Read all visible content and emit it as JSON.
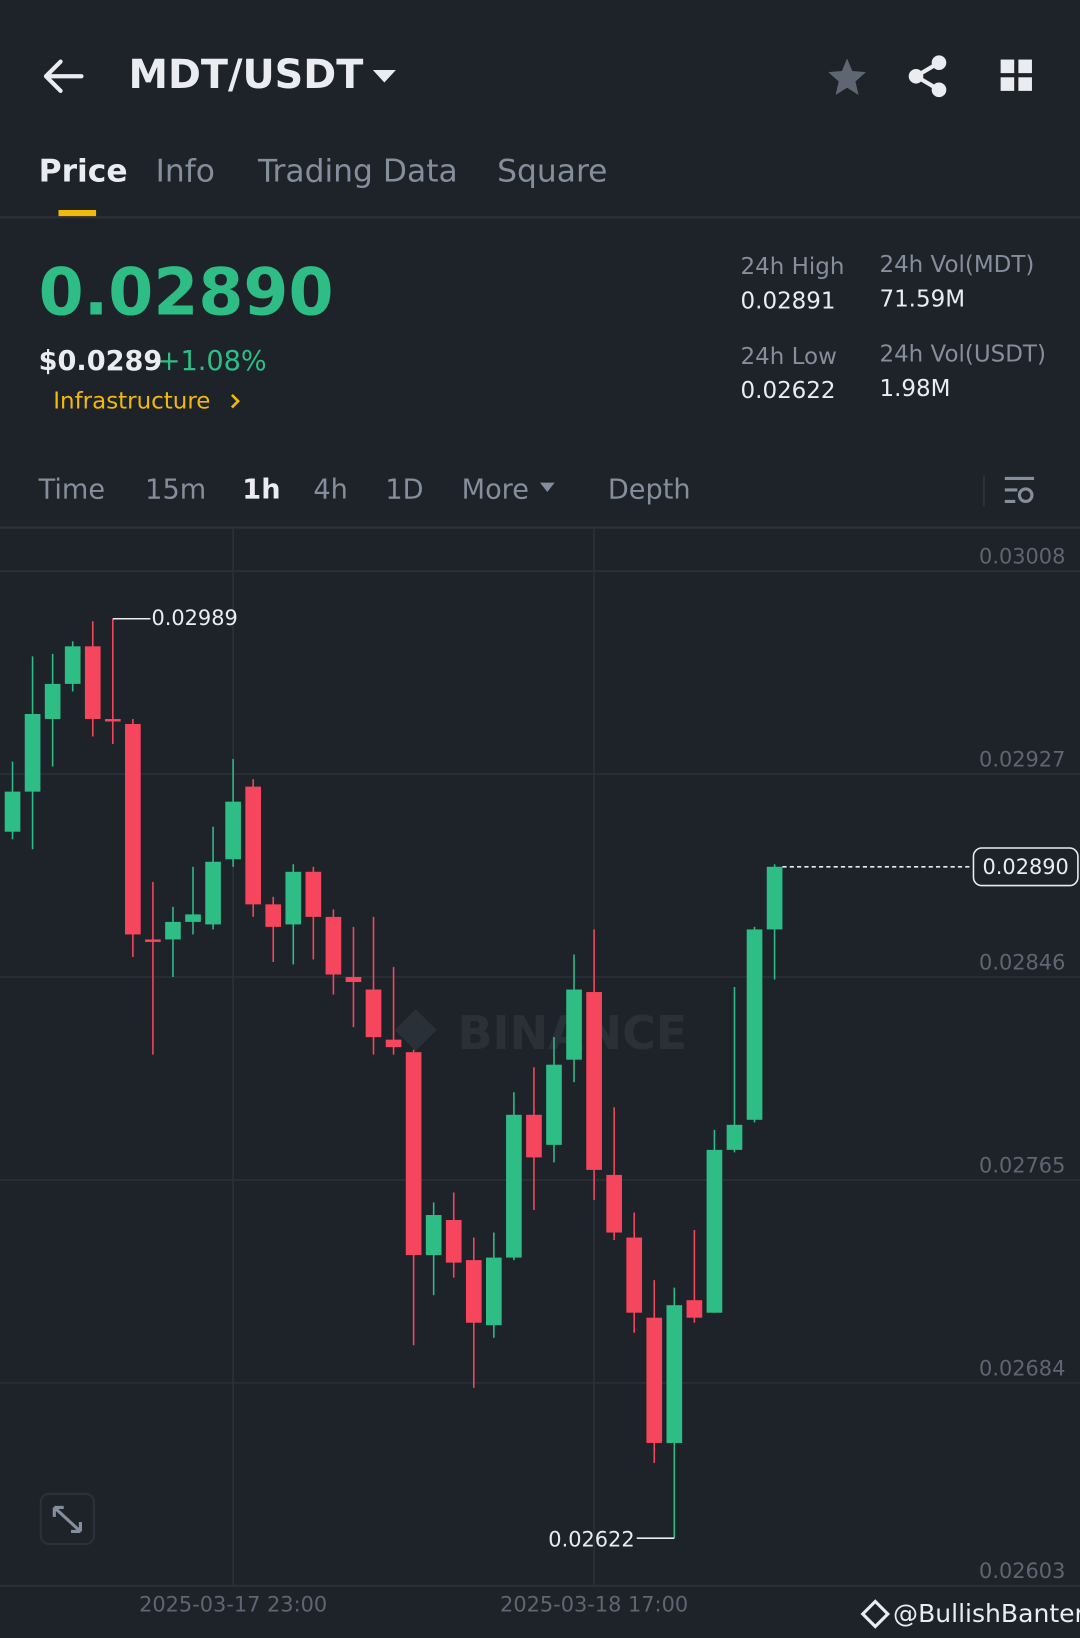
{
  "header": {
    "pair": "MDT/USDT"
  },
  "tabs": [
    "Price",
    "Info",
    "Trading Data",
    "Square"
  ],
  "ticker": {
    "price": "0.02890",
    "usd_price": "$0.0289",
    "change": "+1.08%",
    "tag": "Infrastructure",
    "stats": [
      {
        "label": "24h High",
        "value": "0.02891"
      },
      {
        "label": "24h Vol(MDT)",
        "value": "71.59M"
      },
      {
        "label": "24h Low",
        "value": "0.02622"
      },
      {
        "label": "24h Vol(USDT)",
        "value": "1.98M"
      }
    ]
  },
  "intervals": [
    "Time",
    "15m",
    "1h",
    "4h",
    "1D",
    "More",
    "Depth"
  ],
  "watermark": "BINANCE",
  "credit": "@BullishBanter",
  "chart_data": {
    "type": "candlestick",
    "categories": [
      null,
      null,
      null,
      null,
      null,
      null,
      null,
      null,
      null,
      null,
      null,
      "2025-03-17 23:00",
      null,
      null,
      null,
      null,
      null,
      null,
      null,
      null,
      null,
      null,
      null,
      null,
      null,
      null,
      null,
      null,
      null,
      "2025-03-18 17:00",
      null,
      null,
      null,
      null,
      null,
      null,
      null,
      null,
      null
    ],
    "open": [
      0.02904,
      0.0292,
      0.02949,
      0.02963,
      0.02978,
      0.02949,
      0.02947,
      0.02861,
      0.02861,
      0.02868,
      0.02867,
      0.02893,
      0.02922,
      0.02875,
      0.02867,
      0.02888,
      0.0287,
      0.02846,
      0.02841,
      0.02821,
      0.02816,
      0.02735,
      0.02749,
      0.02733,
      0.02707,
      0.02734,
      0.02791,
      0.02779,
      0.02813,
      0.0284,
      0.02767,
      0.02742,
      0.0271,
      0.0266,
      0.02717,
      0.02712,
      0.02777,
      0.02789,
      0.02865
    ],
    "high": [
      0.02932,
      0.02974,
      0.02975,
      0.0298,
      0.02988,
      0.02989,
      0.02949,
      0.02884,
      0.02874,
      0.0289,
      0.02906,
      0.02933,
      0.02925,
      0.02878,
      0.02891,
      0.0289,
      0.02873,
      0.02866,
      0.0287,
      0.0285,
      0.02817,
      0.02756,
      0.0276,
      0.02742,
      0.02744,
      0.028,
      0.0281,
      0.02822,
      0.02855,
      0.02865,
      0.02794,
      0.02752,
      0.02725,
      0.02722,
      0.02745,
      0.02785,
      0.02842,
      0.02866,
      0.02891
    ],
    "low": [
      0.02901,
      0.02897,
      0.0293,
      0.0296,
      0.02942,
      0.02939,
      0.02854,
      0.02815,
      0.02846,
      0.02863,
      0.02865,
      0.0289,
      0.0287,
      0.02852,
      0.02851,
      0.02853,
      0.02839,
      0.02826,
      0.02815,
      0.02815,
      0.02699,
      0.02719,
      0.02726,
      0.02682,
      0.02702,
      0.02733,
      0.02753,
      0.02772,
      0.02804,
      0.02757,
      0.02741,
      0.02704,
      0.02652,
      0.02622,
      0.02708,
      0.02712,
      0.02776,
      0.02788,
      0.02845
    ],
    "close": [
      0.0292,
      0.02951,
      0.02963,
      0.02978,
      0.02949,
      0.02948,
      0.02863,
      0.0286,
      0.02868,
      0.02871,
      0.02892,
      0.02916,
      0.02875,
      0.02866,
      0.02888,
      0.0287,
      0.02847,
      0.02844,
      0.02822,
      0.02818,
      0.02735,
      0.02751,
      0.02732,
      0.02708,
      0.02734,
      0.02791,
      0.02774,
      0.02811,
      0.02841,
      0.02769,
      0.02744,
      0.02712,
      0.0266,
      0.02715,
      0.0271,
      0.02777,
      0.02787,
      0.02865,
      0.0289
    ],
    "up_color": "#2ebd85",
    "down_color": "#f6465d",
    "ylim": [
      0.02603,
      0.03025
    ],
    "yticks": [
      0.02603,
      0.02684,
      0.02765,
      0.02846,
      0.02927,
      0.03008
    ],
    "grid": true,
    "last_price": {
      "value": 0.0289,
      "label": "0.02890"
    },
    "high_annotation": 0.02989,
    "low_annotation": 0.02622
  }
}
